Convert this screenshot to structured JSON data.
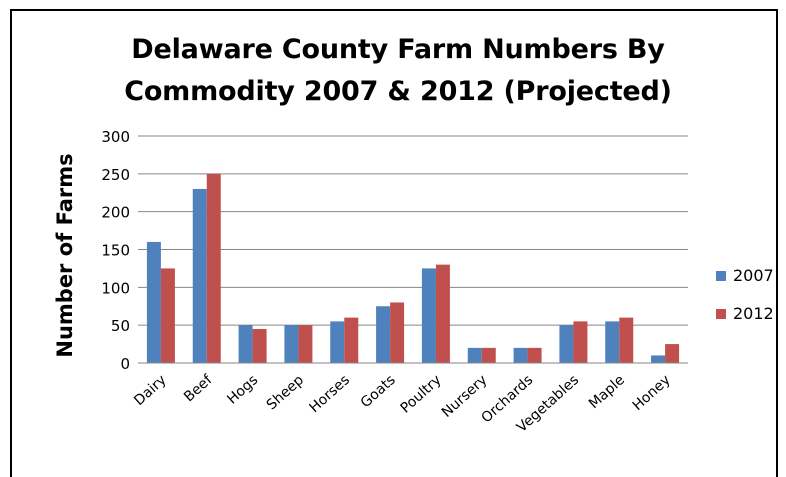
{
  "chart_data": {
    "type": "bar",
    "title_line1": "Delaware County Farm Numbers By",
    "title_line2": "Commodity 2007 & 2012 (Projected)",
    "xlabel": "",
    "ylabel": "Number of Farms",
    "ylim": [
      0,
      300
    ],
    "yticks": [
      0,
      50,
      100,
      150,
      200,
      250,
      300
    ],
    "grid": true,
    "legend_placement": "right",
    "categories": [
      "Dairy",
      "Beef",
      "Hogs",
      "Sheep",
      "Horses",
      "Goats",
      "Poultry",
      "Nursery",
      "Orchards",
      "Vegetables",
      "Maple",
      "Honey"
    ],
    "series": [
      {
        "name": "2007",
        "color": "#4F81BD",
        "values": [
          160,
          230,
          50,
          50,
          55,
          75,
          125,
          20,
          20,
          50,
          55,
          10
        ]
      },
      {
        "name": "2012",
        "color": "#C0504D",
        "values": [
          125,
          250,
          45,
          50,
          60,
          80,
          130,
          20,
          20,
          55,
          60,
          25
        ]
      }
    ]
  }
}
